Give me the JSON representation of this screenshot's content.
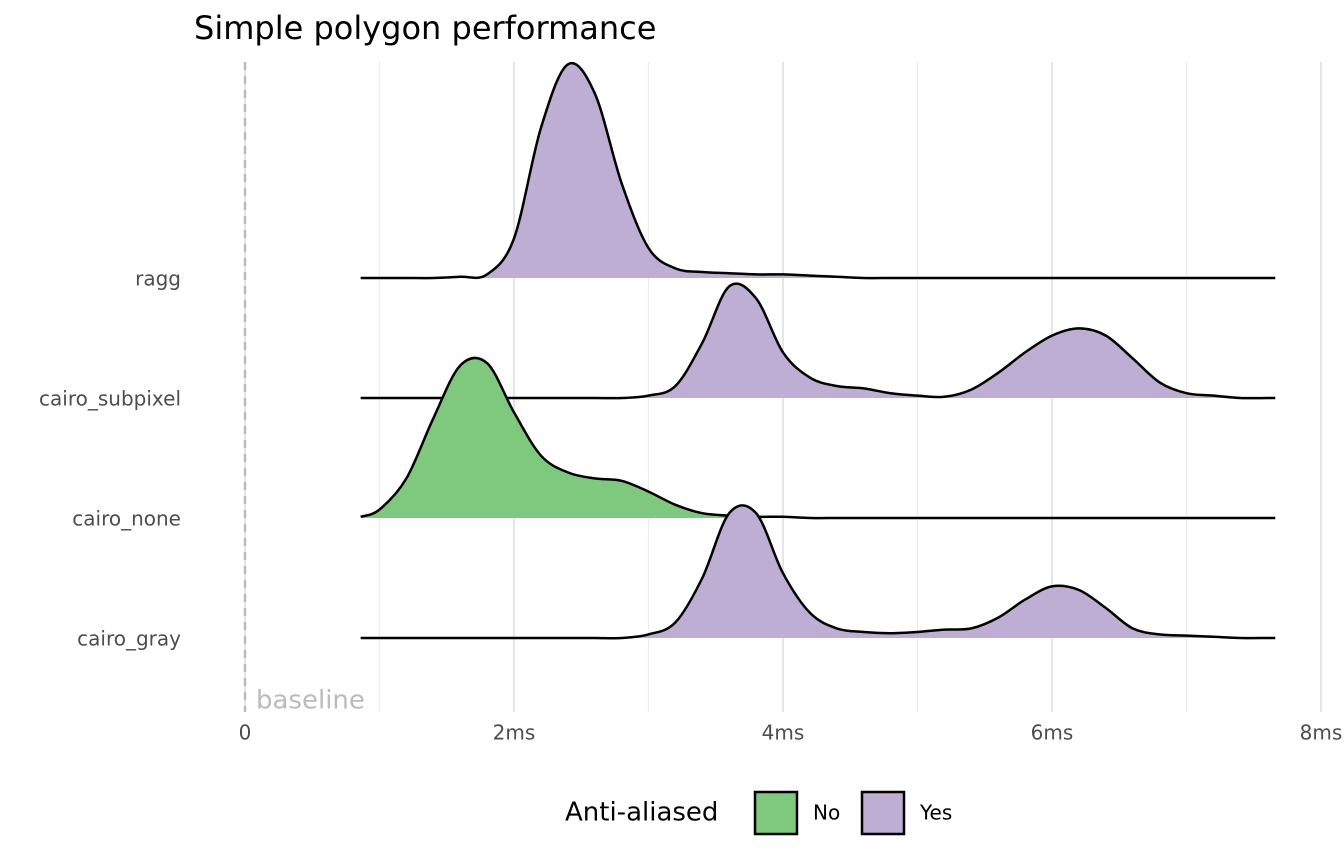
{
  "chart_data": {
    "type": "ridgeline",
    "title": "Simple polygon performance",
    "x": [
      0.86,
      1.0,
      1.2,
      1.4,
      1.6,
      1.8,
      2.0,
      2.2,
      2.4,
      2.6,
      2.8,
      3.0,
      3.2,
      3.4,
      3.6,
      3.8,
      4.0,
      4.2,
      4.4,
      4.6,
      4.8,
      5.0,
      5.2,
      5.4,
      5.6,
      5.8,
      6.0,
      6.2,
      6.4,
      6.6,
      6.8,
      7.0,
      7.2,
      7.4,
      7.6,
      7.66
    ],
    "series": [
      {
        "name": "ragg",
        "legend": 1,
        "values": [
          0,
          0,
          0,
          0,
          0.01,
          0.03,
          0.33,
          1.25,
          1.78,
          1.54,
          0.79,
          0.25,
          0.08,
          0.05,
          0.04,
          0.03,
          0.03,
          0.02,
          0.01,
          0,
          0,
          0,
          0,
          0,
          0,
          0,
          0,
          0,
          0,
          0,
          0,
          0,
          0,
          0,
          0,
          0
        ]
      },
      {
        "name": "cairo_subpixel",
        "legend": 1,
        "values": [
          0,
          0,
          0,
          0,
          0,
          0,
          0,
          0,
          0,
          0,
          0,
          0.02,
          0.1,
          0.46,
          0.93,
          0.83,
          0.38,
          0.17,
          0.1,
          0.08,
          0.04,
          0.02,
          0.01,
          0.07,
          0.21,
          0.38,
          0.52,
          0.58,
          0.52,
          0.33,
          0.13,
          0.04,
          0.02,
          0,
          0,
          0
        ]
      },
      {
        "name": "cairo_none",
        "legend": 0,
        "values": [
          0.01,
          0.07,
          0.33,
          0.83,
          1.27,
          1.29,
          0.88,
          0.52,
          0.38,
          0.33,
          0.31,
          0.22,
          0.11,
          0.04,
          0.02,
          0.01,
          0.01,
          0,
          0,
          0,
          0,
          0,
          0,
          0,
          0,
          0,
          0,
          0,
          0,
          0,
          0,
          0,
          0,
          0,
          0,
          0
        ]
      },
      {
        "name": "cairo_gray",
        "legend": 1,
        "values": [
          0,
          0,
          0,
          0,
          0,
          0,
          0,
          0,
          0,
          0,
          0,
          0.03,
          0.13,
          0.5,
          1.04,
          1.04,
          0.54,
          0.21,
          0.08,
          0.05,
          0.04,
          0.05,
          0.07,
          0.08,
          0.17,
          0.32,
          0.43,
          0.4,
          0.25,
          0.08,
          0.03,
          0.02,
          0.01,
          0,
          0,
          0
        ]
      }
    ],
    "xlim": [
      0,
      8
    ],
    "xticks": [
      0,
      {
        "value": 2,
        "label": "2ms"
      },
      {
        "value": 4,
        "label": "4ms"
      },
      {
        "value": 6,
        "label": "6ms"
      },
      {
        "value": 8,
        "label": "8ms"
      }
    ],
    "xminor": [
      1,
      3,
      5,
      7
    ],
    "grid": true,
    "annotation": {
      "x": 0,
      "label": "baseline"
    },
    "legend": {
      "title": "Anti-aliased",
      "position": "bottom",
      "entries": [
        {
          "label": "No",
          "color": "#7fc97f"
        },
        {
          "label": "Yes",
          "color": "#beaed4"
        }
      ]
    }
  }
}
